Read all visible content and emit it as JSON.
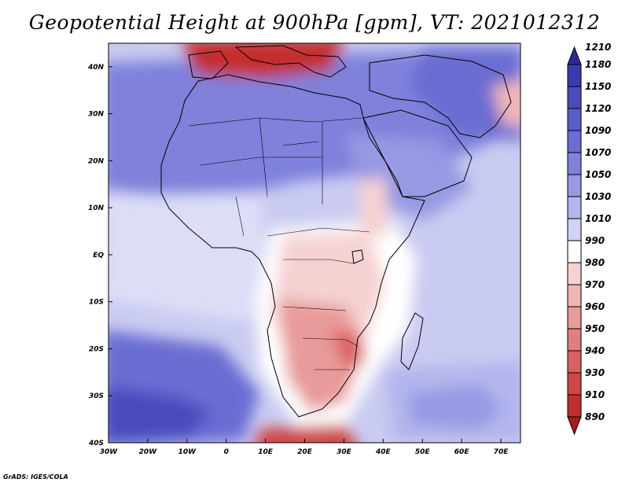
{
  "title": "Geopotential Height at 900hPa [gpm], VT: 2021012312",
  "footer": "GrADS: IGES/COLA",
  "lon_labels": [
    "30W",
    "20W",
    "10W",
    "0",
    "10E",
    "20E",
    "30E",
    "40E",
    "50E",
    "60E",
    "70E"
  ],
  "lat_labels": [
    "40N",
    "30N",
    "20N",
    "10N",
    "EQ",
    "10S",
    "20S",
    "30S",
    "40S"
  ],
  "colorbar": {
    "top_value": "1210",
    "bottom_value": "890",
    "levels": [
      "1180",
      "1150",
      "1120",
      "1090",
      "1070",
      "1050",
      "1030",
      "1010",
      "990",
      "980",
      "970",
      "960",
      "950",
      "940",
      "930",
      "910"
    ],
    "colors": [
      "#2b2b9e",
      "#3a3aaf",
      "#4a4bbd",
      "#5a5cc8",
      "#6b6dd2",
      "#7f81db",
      "#9799e3",
      "#b3b5ec",
      "#d1d3f4",
      "#ffffff",
      "#f5d2d2",
      "#efb5b5",
      "#e99a9a",
      "#e37e7e",
      "#da6161",
      "#cf4646",
      "#c42d2d",
      "#b01818"
    ]
  },
  "map": {
    "extent": {
      "lon_min": -30,
      "lon_max": 75,
      "lat_min": -40,
      "lat_max": 45
    },
    "regions": {
      "ocean_bg": "#c9cbf1",
      "north_high": "#7f81db",
      "atlantic_low_lat": "#dcdef7",
      "sw_high": "#6b6dd2",
      "sw_high_core": "#4a4bbd",
      "se_indian": "#b3b5ec",
      "se_indian_core": "#9799e3",
      "arabia": "#9799e3",
      "east_high": "#6b6dd2",
      "central_low": "#f5d2d2",
      "south_low": "#e99a9a",
      "south_low_core": "#da6161",
      "south_ocean_low": "#cf4646",
      "med_low": "#c42d2d",
      "tibet_low": "#efb5b5",
      "white_zone": "#ffffff"
    }
  }
}
